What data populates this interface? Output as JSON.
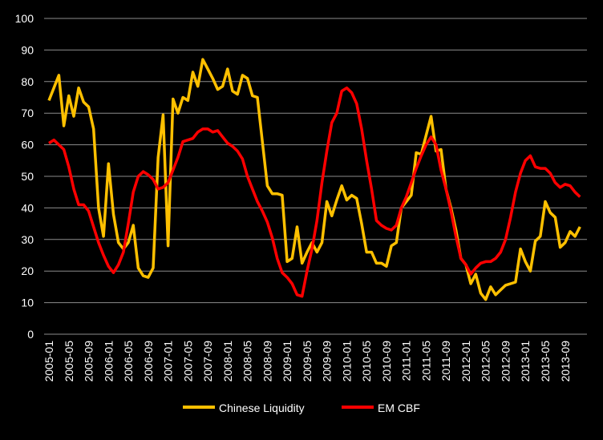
{
  "chart_data": {
    "type": "line",
    "title": "",
    "xlabel": "",
    "ylabel": "",
    "ylim": [
      0,
      100
    ],
    "yticks": [
      0,
      10,
      20,
      30,
      40,
      50,
      60,
      70,
      80,
      90,
      100
    ],
    "grid": true,
    "legend_placement": "bottom",
    "x_start": "2005-01",
    "x_frequency": "monthly",
    "x_tick_labels": [
      "2005-01",
      "2005-05",
      "2005-09",
      "2006-01",
      "2006-05",
      "2006-09",
      "2007-01",
      "2007-05",
      "2007-09",
      "2008-01",
      "2008-05",
      "2008-09",
      "2009-01",
      "2009-05",
      "2009-09",
      "2010-01",
      "2010-05",
      "2010-09",
      "2011-01",
      "2011-05",
      "2011-09",
      "2012-01",
      "2012-05",
      "2012-09",
      "2013-01",
      "2013-05",
      "2013-09"
    ],
    "series": [
      {
        "name": "Chinese Liquidity",
        "color": "#FFC000",
        "values": [
          74,
          78,
          82,
          66,
          75.5,
          69,
          78,
          73.5,
          72,
          65,
          40,
          31,
          54,
          38,
          29,
          27,
          29,
          34.5,
          21,
          18.5,
          18,
          21,
          56,
          69.5,
          28,
          74.5,
          70,
          75,
          74,
          83,
          78.5,
          87,
          84,
          81,
          77.5,
          78.5,
          84,
          77,
          76,
          82,
          81,
          75.5,
          75,
          61,
          47,
          44.5,
          44.5,
          44,
          23,
          24,
          34,
          22.5,
          26,
          29,
          26,
          29,
          42,
          37.5,
          42.5,
          47,
          42.5,
          44,
          43,
          35,
          26,
          26,
          22.5,
          22.5,
          21.5,
          28,
          29,
          40,
          42,
          44,
          57.5,
          57,
          63,
          69,
          58,
          58.5,
          46,
          40,
          33,
          24,
          22,
          16,
          19,
          13,
          11,
          15,
          12.5,
          14,
          15.5,
          16,
          16.5,
          27,
          23,
          20,
          29.5,
          31,
          42,
          38.5,
          37,
          27.5,
          29,
          32.5,
          31,
          34
        ]
      },
      {
        "name": "EM CBF",
        "color": "#FF0000",
        "values": [
          60.5,
          61.5,
          60,
          58.5,
          53,
          46,
          41,
          41,
          39,
          34,
          29,
          25,
          21.5,
          19.5,
          22,
          26,
          35,
          45,
          50,
          51.5,
          50.5,
          49,
          46,
          46.5,
          48,
          52,
          56,
          61,
          61.5,
          62,
          64,
          65,
          65,
          64,
          64.5,
          62.5,
          60.5,
          59.5,
          58,
          55.5,
          50,
          46,
          42,
          39,
          35.5,
          30.5,
          24,
          19.5,
          18,
          16,
          12.5,
          12,
          20,
          27,
          36,
          48,
          58,
          67,
          70,
          77,
          78,
          76.5,
          73,
          65,
          55,
          46,
          36,
          34.5,
          33.5,
          33,
          34.5,
          40,
          43.5,
          48,
          52.5,
          56.5,
          60,
          62.5,
          60,
          52,
          46,
          39,
          31,
          24,
          22,
          19,
          21,
          22.5,
          23,
          23,
          24,
          26,
          30,
          37,
          45,
          51,
          55,
          56.5,
          53,
          52.5,
          52.5,
          51,
          48,
          46.5,
          47.5,
          47,
          45,
          43.5
        ]
      }
    ]
  }
}
